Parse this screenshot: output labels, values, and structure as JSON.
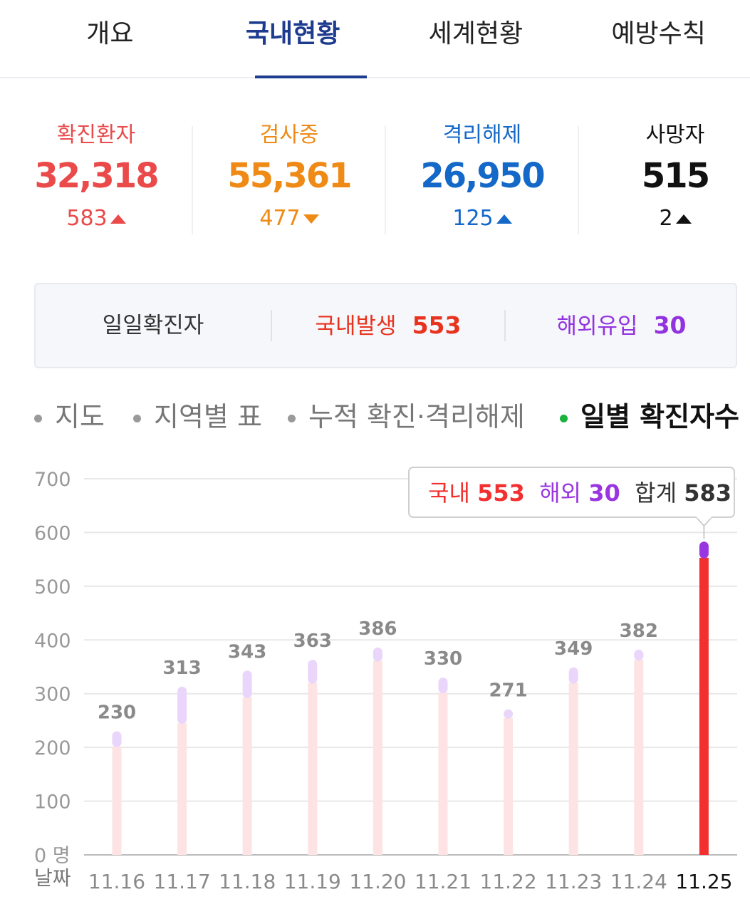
{
  "tabs": [
    {
      "label": "개요",
      "active": false
    },
    {
      "label": "국내현황",
      "active": true
    },
    {
      "label": "세계현황",
      "active": false
    },
    {
      "label": "예방수칙",
      "active": false
    }
  ],
  "stats": [
    {
      "label": "확진환자",
      "value": "32,318",
      "delta": "583",
      "direction": "up",
      "color": "#ea4a4a"
    },
    {
      "label": "검사중",
      "value": "55,361",
      "delta": "477",
      "direction": "down",
      "color": "#ee8a15"
    },
    {
      "label": "격리해제",
      "value": "26,950",
      "delta": "125",
      "direction": "up",
      "color": "#1468c8"
    },
    {
      "label": "사망자",
      "value": "515",
      "delta": "2",
      "direction": "up",
      "color": "#111111"
    }
  ],
  "daily": {
    "label": "일일확진자",
    "domestic_label": "국내발생",
    "domestic_value": "553",
    "overseas_label": "해외유입",
    "overseas_value": "30"
  },
  "chart_tabs": [
    {
      "label": "지도",
      "active": false
    },
    {
      "label": "지역별 표",
      "active": false
    },
    {
      "label": "누적 확진·격리해제",
      "active": false
    },
    {
      "label": "일별 확진자수",
      "active": true
    }
  ],
  "colors": {
    "domestic": "#f23030",
    "overseas": "#9a36e0",
    "domestic_faded": "#fde3e3",
    "overseas_faded": "#ead6fa",
    "grid": "#e8e8e8",
    "axis_text": "#999999"
  },
  "chart_data": {
    "type": "bar",
    "stacked": true,
    "categories": [
      "11.16",
      "11.17",
      "11.18",
      "11.19",
      "11.20",
      "11.21",
      "11.22",
      "11.23",
      "11.24",
      "11.25"
    ],
    "series": [
      {
        "name": "국내",
        "values": [
          202,
          245,
          293,
          320,
          361,
          302,
          255,
          320,
          363,
          553
        ]
      },
      {
        "name": "해외",
        "values": [
          28,
          68,
          50,
          43,
          25,
          28,
          16,
          29,
          19,
          30
        ]
      }
    ],
    "totals": [
      230,
      313,
      343,
      363,
      386,
      330,
      271,
      349,
      382,
      583
    ],
    "highlight_index": 9,
    "ylim": [
      0,
      700
    ],
    "yticks": [
      "0 명",
      "100",
      "200",
      "300",
      "400",
      "500",
      "600",
      "700"
    ],
    "xlabel": "날짜",
    "grid": true,
    "tooltip": {
      "domestic_label": "국내",
      "domestic_value": "553",
      "overseas_label": "해외",
      "overseas_value": "30",
      "total_label": "합계",
      "total_value": "583"
    }
  }
}
